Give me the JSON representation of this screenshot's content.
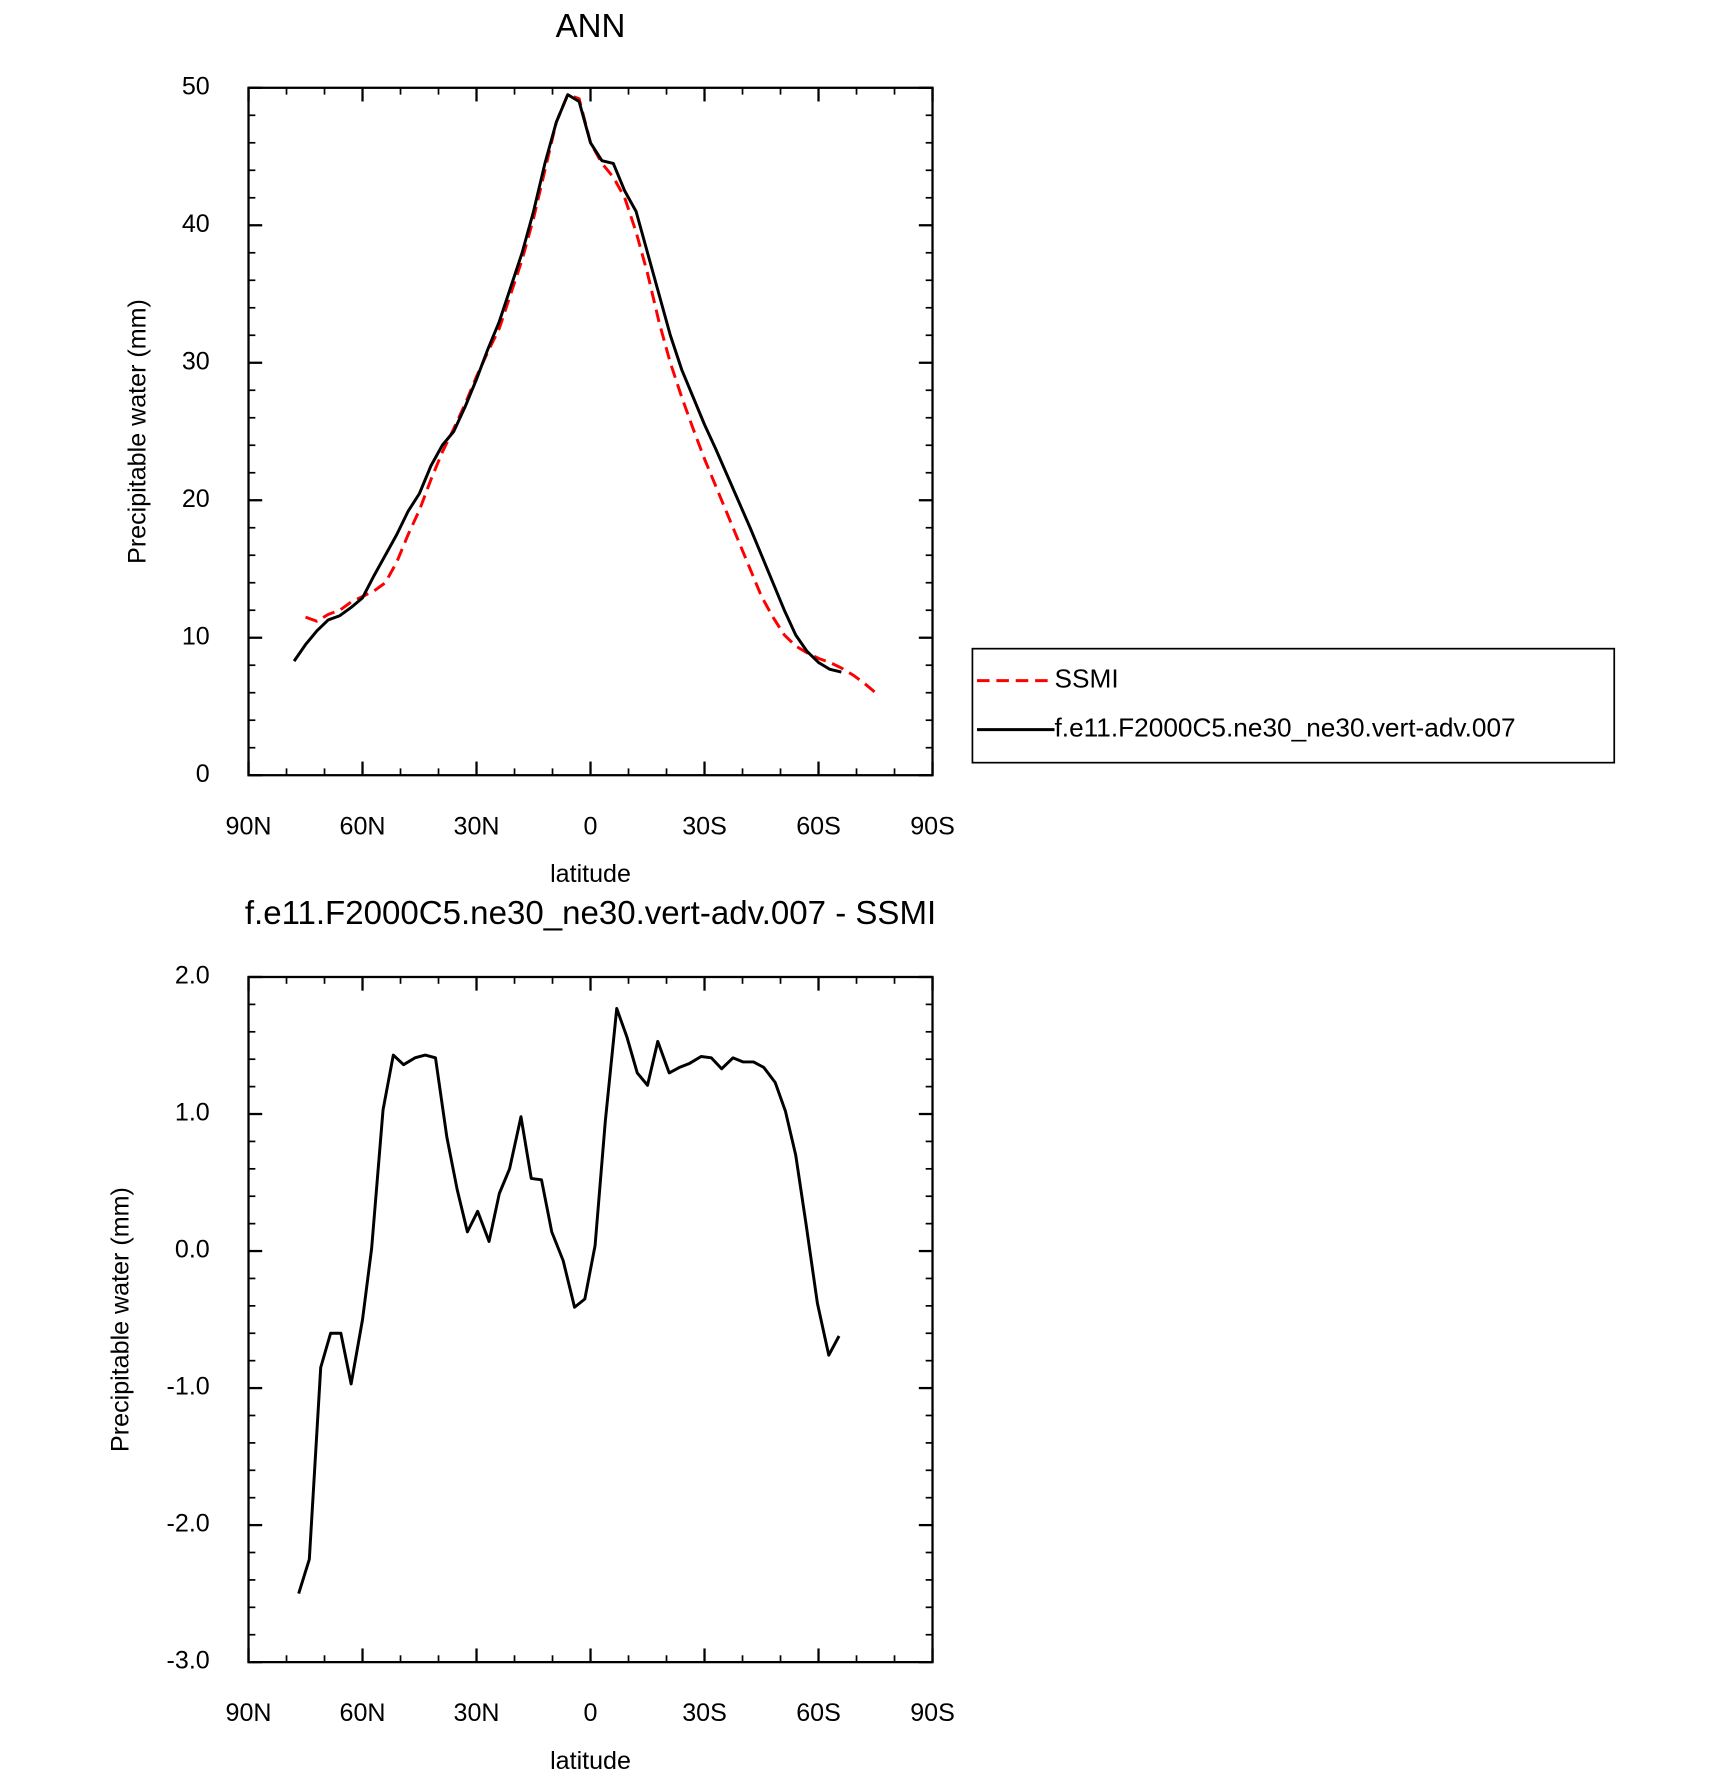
{
  "chart_data": [
    {
      "type": "line",
      "title": "ANN",
      "xlabel": "latitude",
      "ylabel": "Precipitable water (mm)",
      "x": [
        78,
        75,
        72,
        69,
        66,
        63,
        60,
        57,
        54,
        51,
        48,
        45,
        42,
        39,
        36,
        33,
        30,
        27,
        24,
        21,
        18,
        15,
        12,
        9,
        6,
        3,
        0,
        -3,
        -6,
        -9,
        -12,
        -15,
        -18,
        -21,
        -24,
        -27,
        -30,
        -33,
        -36,
        -39,
        -42,
        -45,
        -48,
        -51,
        -54,
        -57,
        -60,
        -63,
        -66,
        -69,
        -72,
        -75
      ],
      "series": [
        {
          "name": "SSMI",
          "color": "#ff0000",
          "dash": true,
          "values": [
            null,
            11.5,
            11.2,
            11.7,
            12.0,
            12.6,
            13.0,
            13.4,
            14.0,
            15.5,
            17.5,
            19.3,
            21.5,
            23.5,
            25.2,
            27,
            29,
            30.8,
            32.5,
            35,
            37.5,
            40.5,
            44,
            47.5,
            49.5,
            49.2,
            46,
            44.5,
            43.5,
            42,
            39.5,
            36.5,
            33,
            30,
            27.5,
            25.2,
            23,
            21,
            19,
            17,
            15,
            13,
            11.5,
            10.2,
            9.4,
            8.9,
            8.5,
            8.2,
            7.8,
            7.3,
            6.7,
            6.0
          ]
        },
        {
          "name": "f.e11.F2000C5.ne30_ne30.vert-adv.007",
          "color": "#000000",
          "dash": false,
          "values": [
            8.3,
            9.5,
            10.5,
            11.3,
            11.6,
            12.2,
            12.9,
            14.5,
            16,
            17.5,
            19.2,
            20.5,
            22.5,
            24,
            25,
            26.8,
            28.8,
            31,
            33,
            35.5,
            38,
            41,
            44.5,
            47.5,
            49.5,
            49,
            46,
            44.7,
            44.5,
            42.5,
            41,
            38,
            35,
            32,
            29.5,
            27.5,
            25.5,
            23.7,
            21.8,
            19.9,
            18,
            16,
            14,
            12,
            10.2,
            9,
            8.2,
            7.7,
            7.5,
            null,
            null,
            null
          ]
        }
      ],
      "xlim": [
        90,
        -90
      ],
      "xticks": [
        {
          "value": 90,
          "label": "90N"
        },
        {
          "value": 60,
          "label": "60N"
        },
        {
          "value": 30,
          "label": "30N"
        },
        0,
        {
          "value": -30,
          "label": "30S"
        },
        {
          "value": -60,
          "label": "60S"
        },
        {
          "value": -90,
          "label": "90S"
        }
      ],
      "ylim": [
        0,
        50
      ],
      "yticks": [
        0,
        10,
        20,
        30,
        40,
        50
      ],
      "legend": "right"
    },
    {
      "type": "line",
      "title": "f.e11.F2000C5.ne30_ne30.vert-adv.007 - SSMI",
      "xlabel": "latitude",
      "ylabel": "Precipitable water (mm)",
      "x": [
        76.8,
        74,
        71,
        68.4,
        65.7,
        63,
        60,
        57.6,
        54.6,
        51.9,
        49.2,
        46.2,
        43.5,
        40.8,
        37.8,
        35.1,
        32.4,
        29.7,
        26.7,
        24,
        21.3,
        18.3,
        15.6,
        12.9,
        10.2,
        7.2,
        4.2,
        1.5,
        -1.2,
        -3.9,
        -6.9,
        -9.6,
        -12.3,
        -15,
        -17.7,
        -20.7,
        -23.4,
        -26.1,
        -29.1,
        -31.8,
        -34.5,
        -37.5,
        -40.2,
        -42.9,
        -45.6,
        -48.6,
        -51.3,
        -54,
        -56.7,
        -59.7,
        -62.7,
        -65.4
      ],
      "series": [
        {
          "color": "#000000",
          "dash": false,
          "values": [
            -2.5,
            -2.25,
            -0.85,
            -0.6,
            -0.6,
            -0.97,
            -0.5,
            0.02,
            1.03,
            1.43,
            1.36,
            1.41,
            1.43,
            1.41,
            0.83,
            0.45,
            0.14,
            0.29,
            0.07,
            0.42,
            0.6,
            0.98,
            0.53,
            0.52,
            0.14,
            -0.07,
            -0.41,
            -0.35,
            0.04,
            0.95,
            1.77,
            1.56,
            1.3,
            1.21,
            1.53,
            1.3,
            1.34,
            1.37,
            1.42,
            1.41,
            1.33,
            1.41,
            1.38,
            1.38,
            1.34,
            1.23,
            1.02,
            0.7,
            0.2,
            -0.38,
            -0.76,
            -0.62
          ]
        }
      ],
      "xlim": [
        90,
        -90
      ],
      "xticks": [
        {
          "value": 90,
          "label": "90N"
        },
        {
          "value": 60,
          "label": "60N"
        },
        {
          "value": 30,
          "label": "30N"
        },
        0,
        {
          "value": -30,
          "label": "30S"
        },
        {
          "value": -60,
          "label": "60S"
        },
        {
          "value": -90,
          "label": "90S"
        }
      ],
      "ylim": [
        -3,
        2
      ],
      "yticks": [
        {
          "value": -3,
          "label": "-3.0"
        },
        {
          "value": -2,
          "label": "-2.0"
        },
        {
          "value": -1,
          "label": "-1.0"
        },
        {
          "value": 0,
          "label": "0.0"
        },
        {
          "value": 1,
          "label": "1.0"
        },
        {
          "value": 2,
          "label": "2.0"
        }
      ]
    }
  ]
}
